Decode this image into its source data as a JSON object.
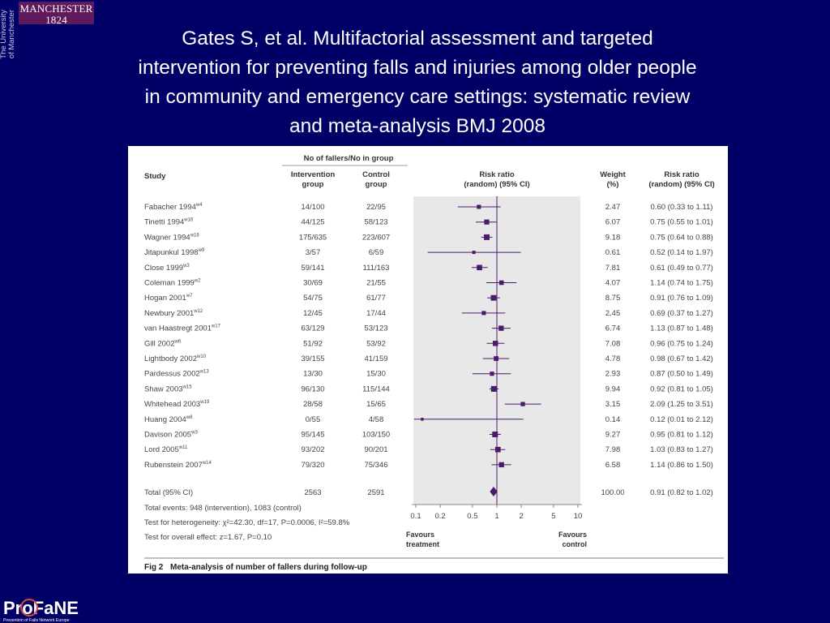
{
  "slide": {
    "title": "Gates S, et al. Multifactorial assessment and targeted intervention for preventing falls and injuries among older people in community and emergency care settings: systematic review and meta-analysis BMJ 2008",
    "university_logo": "MANCHESTER 1824",
    "university_logo_year": "1824",
    "university_side_text": [
      "The University",
      "of Manchester"
    ],
    "footer_logo": "ProFaNE",
    "footer_logo_sub": "Prevention of Falls Network Europe",
    "colors": {
      "background": "#000066",
      "accent_purple": "#4b1b6b",
      "manchester_purple": "#5f1a5e",
      "plot_panel": "#e8e8e8"
    }
  },
  "figure": {
    "caption_label": "Fig 2",
    "caption_text": "Meta-analysis of number of fallers during follow-up",
    "header_group": "No of fallers/No in group",
    "col_study": "Study",
    "col_intervention": [
      "Intervention",
      "group"
    ],
    "col_control": [
      "Control",
      "group"
    ],
    "col_rr_plot": [
      "Risk ratio",
      "(random) (95% CI)"
    ],
    "col_weight": [
      "Weight",
      "(%)"
    ],
    "col_rr_text": [
      "Risk ratio",
      "(random) (95% CI)"
    ],
    "total_label": "Total (95% CI)",
    "total_intervention": "2563",
    "total_control": "2591",
    "total_weight": "100.00",
    "total_rr": "0.91 (0.82 to 1.02)",
    "notes": [
      "Total events: 948 (intervention), 1083 (control)",
      "Test for heterogeneity: χ²=42.30, df=17, P=0.0006, I²=59.8%",
      "Test for overall effect: z=1.67, P=0.10"
    ],
    "favours_left": [
      "Favours",
      "treatment"
    ],
    "favours_right": [
      "Favours",
      "control"
    ]
  },
  "chart_data": {
    "type": "forest",
    "x_scale": "log",
    "x_ticks": [
      "0.1",
      "0.2",
      "0.5",
      "1",
      "2",
      "5",
      "10"
    ],
    "xlim": [
      0.1,
      10
    ],
    "reference_line": 1,
    "studies": [
      {
        "name": "Fabacher 1994",
        "sup": "w4",
        "intervention": "14/100",
        "control": "22/95",
        "weight": "2.47",
        "rr_text": "0.60 (0.33 to 1.11)",
        "rr": 0.6,
        "lo": 0.33,
        "hi": 1.11
      },
      {
        "name": "Tinetti 1994",
        "sup": "w16",
        "intervention": "44/125",
        "control": "58/123",
        "weight": "6.07",
        "rr_text": "0.75 (0.55 to 1.01)",
        "rr": 0.75,
        "lo": 0.55,
        "hi": 1.01
      },
      {
        "name": "Wagner 1994",
        "sup": "w18",
        "intervention": "175/635",
        "control": "223/607",
        "weight": "9.18",
        "rr_text": "0.75 (0.64 to 0.88)",
        "rr": 0.75,
        "lo": 0.64,
        "hi": 0.88
      },
      {
        "name": "Jitapunkul 1998",
        "sup": "w9",
        "intervention": "3/57",
        "control": "6/59",
        "weight": "0.61",
        "rr_text": "0.52 (0.14 to 1.97)",
        "rr": 0.52,
        "lo": 0.14,
        "hi": 1.97
      },
      {
        "name": "Close 1999",
        "sup": "w3",
        "intervention": "59/141",
        "control": "111/163",
        "weight": "7.81",
        "rr_text": "0.61 (0.49 to 0.77)",
        "rr": 0.61,
        "lo": 0.49,
        "hi": 0.77
      },
      {
        "name": "Coleman 1999",
        "sup": "w2",
        "intervention": "30/69",
        "control": "21/55",
        "weight": "4.07",
        "rr_text": "1.14 (0.74 to 1.75)",
        "rr": 1.14,
        "lo": 0.74,
        "hi": 1.75
      },
      {
        "name": "Hogan 2001",
        "sup": "w7",
        "intervention": "54/75",
        "control": "61/77",
        "weight": "8.75",
        "rr_text": "0.91 (0.76 to 1.09)",
        "rr": 0.91,
        "lo": 0.76,
        "hi": 1.09
      },
      {
        "name": "Newbury 2001",
        "sup": "w12",
        "intervention": "12/45",
        "control": "17/44",
        "weight": "2.45",
        "rr_text": "0.69 (0.37 to 1.27)",
        "rr": 0.69,
        "lo": 0.37,
        "hi": 1.27
      },
      {
        "name": "van Haastregt 2001",
        "sup": "w17",
        "intervention": "63/129",
        "control": "53/123",
        "weight": "6.74",
        "rr_text": "1.13 (0.87 to 1.48)",
        "rr": 1.13,
        "lo": 0.87,
        "hi": 1.48
      },
      {
        "name": "Gill 2002",
        "sup": "w6",
        "intervention": "51/92",
        "control": "53/92",
        "weight": "7.08",
        "rr_text": "0.96 (0.75 to 1.24)",
        "rr": 0.96,
        "lo": 0.75,
        "hi": 1.24
      },
      {
        "name": "Lightbody 2002",
        "sup": "w10",
        "intervention": "39/155",
        "control": "41/159",
        "weight": "4.78",
        "rr_text": "0.98 (0.67 to 1.42)",
        "rr": 0.98,
        "lo": 0.67,
        "hi": 1.42
      },
      {
        "name": "Pardessus 2002",
        "sup": "w13",
        "intervention": "13/30",
        "control": "15/30",
        "weight": "2.93",
        "rr_text": "0.87 (0.50 to 1.49)",
        "rr": 0.87,
        "lo": 0.5,
        "hi": 1.49
      },
      {
        "name": "Shaw 2003",
        "sup": "w15",
        "intervention": "96/130",
        "control": "115/144",
        "weight": "9.94",
        "rr_text": "0.92 (0.81 to 1.05)",
        "rr": 0.92,
        "lo": 0.81,
        "hi": 1.05
      },
      {
        "name": "Whitehead 2003",
        "sup": "w19",
        "intervention": "28/58",
        "control": "15/65",
        "weight": "3.15",
        "rr_text": "2.09 (1.25 to 3.51)",
        "rr": 2.09,
        "lo": 1.25,
        "hi": 3.51
      },
      {
        "name": "Huang 2004",
        "sup": "w8",
        "intervention": "0/55",
        "control": "4/58",
        "weight": "0.14",
        "rr_text": "0.12 (0.01 to 2.12)",
        "rr": 0.12,
        "lo": 0.01,
        "hi": 2.12
      },
      {
        "name": "Davison 2005",
        "sup": "w3",
        "intervention": "95/145",
        "control": "103/150",
        "weight": "9.27",
        "rr_text": "0.95 (0.81 to 1.12)",
        "rr": 0.95,
        "lo": 0.81,
        "hi": 1.12
      },
      {
        "name": "Lord 2005",
        "sup": "w11",
        "intervention": "93/202",
        "control": "90/201",
        "weight": "7.98",
        "rr_text": "1.03 (0.83 to 1.27)",
        "rr": 1.03,
        "lo": 0.83,
        "hi": 1.27
      },
      {
        "name": "Rubenstein 2007",
        "sup": "w14",
        "intervention": "79/320",
        "control": "75/346",
        "weight": "6.58",
        "rr_text": "1.14 (0.86 to 1.50)",
        "rr": 1.14,
        "lo": 0.86,
        "hi": 1.5
      }
    ],
    "total": {
      "rr": 0.91,
      "lo": 0.82,
      "hi": 1.02
    }
  }
}
